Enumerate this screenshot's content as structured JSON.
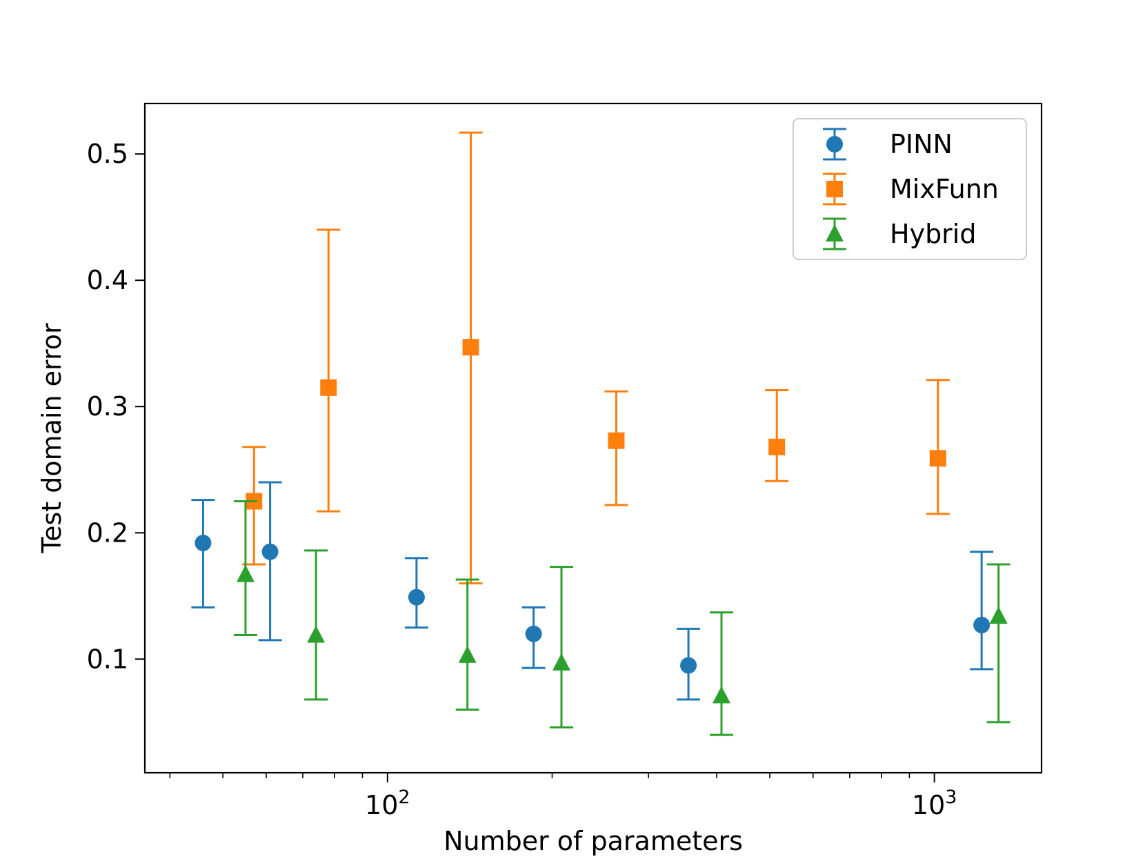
{
  "chart_data": {
    "type": "scatter",
    "title": "",
    "xlabel": "Number of parameters",
    "ylabel": "Test domain error",
    "xscale": "log",
    "xlim": [
      36,
      1570
    ],
    "ylim": [
      0.01,
      0.54
    ],
    "yticks": [
      0.1,
      0.2,
      0.3,
      0.4,
      0.5
    ],
    "ytick_labels": [
      "0.1",
      "0.2",
      "0.3",
      "0.4",
      "0.5"
    ],
    "xticks_major": [
      {
        "value": 100,
        "base": "10",
        "exp": "2"
      },
      {
        "value": 1000,
        "base": "10",
        "exp": "3"
      }
    ],
    "xticks_minor": [
      40,
      50,
      60,
      70,
      80,
      90,
      200,
      300,
      400,
      500,
      600,
      700,
      800,
      900
    ],
    "legend_position": "top-right",
    "series": [
      {
        "name": "PINN",
        "color": "#1f77b4",
        "marker": "circle",
        "points": [
          {
            "x": 46,
            "y": 0.192,
            "lo": 0.141,
            "hi": 0.226
          },
          {
            "x": 61,
            "y": 0.185,
            "lo": 0.115,
            "hi": 0.24
          },
          {
            "x": 113,
            "y": 0.149,
            "lo": 0.125,
            "hi": 0.18
          },
          {
            "x": 185,
            "y": 0.12,
            "lo": 0.093,
            "hi": 0.141
          },
          {
            "x": 355,
            "y": 0.095,
            "lo": 0.068,
            "hi": 0.124
          },
          {
            "x": 1220,
            "y": 0.127,
            "lo": 0.092,
            "hi": 0.185
          }
        ]
      },
      {
        "name": "MixFunn",
        "color": "#ff7f0e",
        "marker": "square",
        "points": [
          {
            "x": 57,
            "y": 0.225,
            "lo": 0.175,
            "hi": 0.268
          },
          {
            "x": 78,
            "y": 0.315,
            "lo": 0.217,
            "hi": 0.44
          },
          {
            "x": 142,
            "y": 0.347,
            "lo": 0.16,
            "hi": 0.517
          },
          {
            "x": 262,
            "y": 0.273,
            "lo": 0.222,
            "hi": 0.312
          },
          {
            "x": 515,
            "y": 0.268,
            "lo": 0.241,
            "hi": 0.313
          },
          {
            "x": 1015,
            "y": 0.259,
            "lo": 0.215,
            "hi": 0.321
          }
        ]
      },
      {
        "name": "Hybrid",
        "color": "#2ca02c",
        "marker": "triangle",
        "points": [
          {
            "x": 55,
            "y": 0.167,
            "lo": 0.119,
            "hi": 0.225
          },
          {
            "x": 74,
            "y": 0.119,
            "lo": 0.068,
            "hi": 0.186
          },
          {
            "x": 140,
            "y": 0.103,
            "lo": 0.06,
            "hi": 0.163
          },
          {
            "x": 208,
            "y": 0.097,
            "lo": 0.046,
            "hi": 0.173
          },
          {
            "x": 408,
            "y": 0.071,
            "lo": 0.04,
            "hi": 0.137
          },
          {
            "x": 1310,
            "y": 0.134,
            "lo": 0.05,
            "hi": 0.175
          }
        ]
      }
    ]
  }
}
